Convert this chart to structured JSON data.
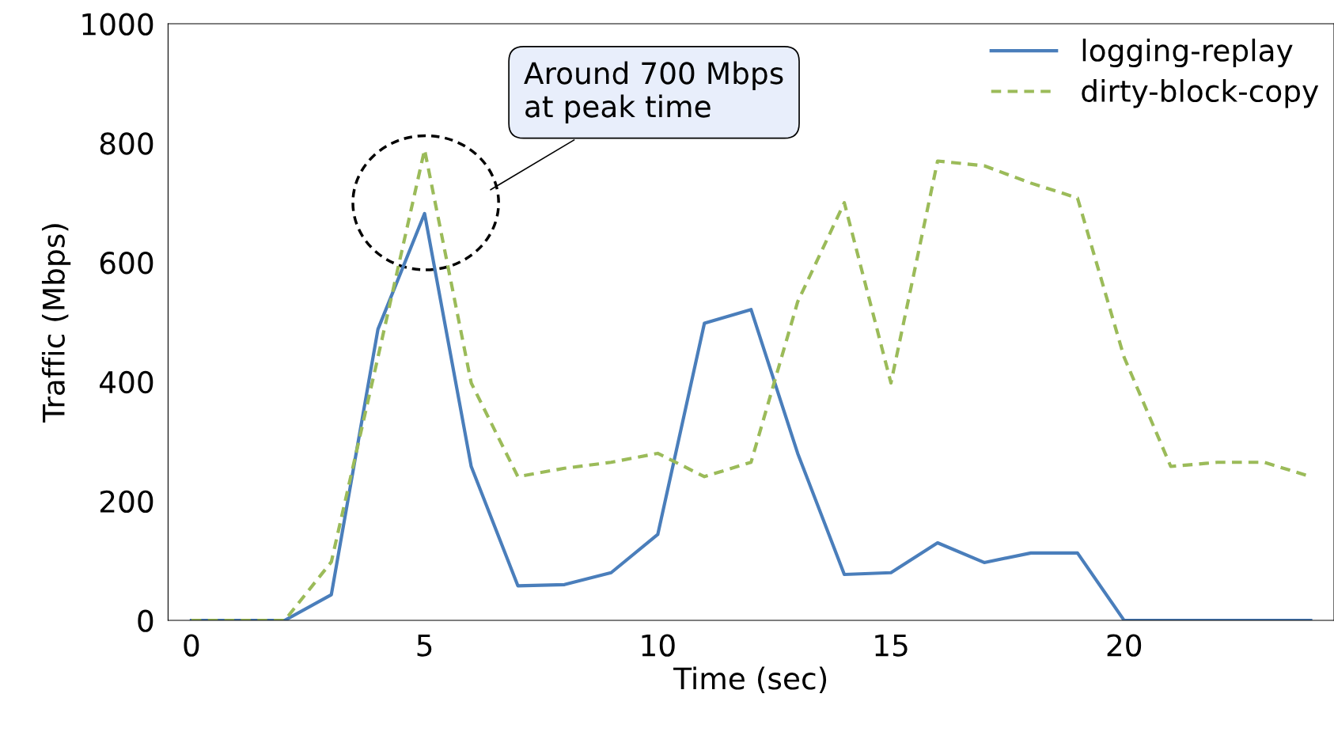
{
  "chart_data": {
    "type": "line",
    "xlabel": "Time (sec)",
    "ylabel": "Traffic (Mbps)",
    "x": [
      0,
      1,
      2,
      3,
      4,
      5,
      6,
      7,
      8,
      9,
      10,
      11,
      12,
      13,
      14,
      15,
      16,
      17,
      18,
      19,
      20,
      21,
      22,
      23,
      24
    ],
    "series": [
      {
        "name": "logging-replay",
        "color": "#4a7ebb",
        "line_style": "solid",
        "values": [
          0,
          0,
          0,
          43,
          488,
          682,
          258,
          58,
          60,
          80,
          144,
          498,
          521,
          280,
          77,
          80,
          130,
          97,
          113,
          113,
          0,
          0,
          0,
          0,
          0
        ]
      },
      {
        "name": "dirty-block-copy",
        "color": "#9bbb59",
        "line_style": "dashed",
        "values": [
          0,
          0,
          0,
          98,
          441,
          789,
          398,
          241,
          255,
          265,
          280,
          241,
          265,
          534,
          700,
          398,
          770,
          762,
          733,
          708,
          441,
          258,
          265,
          265,
          241
        ]
      }
    ],
    "xlim": [
      -0.5,
      24.5
    ],
    "ylim": [
      0,
      1000
    ],
    "xticks": [
      0,
      5,
      10,
      15,
      20
    ],
    "yticks": [
      0,
      200,
      400,
      600,
      800,
      1000
    ],
    "grid": false,
    "legend": "top right",
    "marker": "none",
    "annotations": [
      "Around 700 Mbps\nat peak time"
    ]
  }
}
